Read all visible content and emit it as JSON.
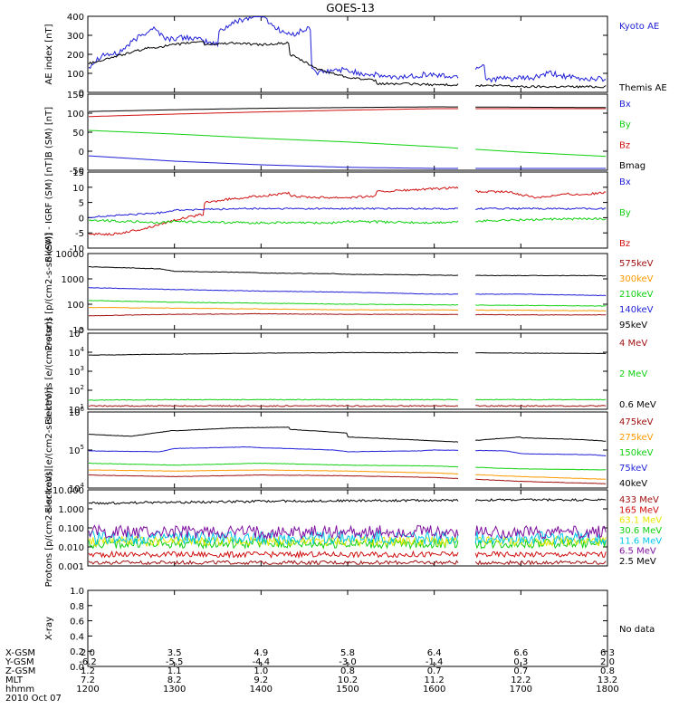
{
  "title": "GOES-13",
  "colors": {
    "black": "#000000",
    "blue": "#1f1fd8",
    "red": "#d01010",
    "green": "#10d010",
    "orange": "#ff9a00",
    "cyan": "#00c8e8",
    "yellow": "#e8e800",
    "darkred": "#a01010",
    "purple": "#8010a0"
  },
  "time_axis": {
    "ticks": [
      "1200",
      "1300",
      "1400",
      "1500",
      "1600",
      "1700",
      "1800"
    ],
    "range": [
      1200,
      1800
    ],
    "gap": [
      1618,
      1628
    ]
  },
  "orbit_table": {
    "rows": [
      {
        "label": "X-GSM",
        "values": [
          "2.0",
          "3.5",
          "4.9",
          "5.8",
          "6.4",
          "6.6",
          "6.3"
        ]
      },
      {
        "label": "Y-GSM",
        "values": [
          "-6.2",
          "-5.5",
          "-4.4",
          "-3.0",
          "-1.4",
          "0.3",
          "2.0"
        ]
      },
      {
        "label": "Z-GSM",
        "values": [
          "1.2",
          "1.1",
          "1.0",
          "0.8",
          "0.7",
          "0.7",
          "0.8"
        ]
      },
      {
        "label": "MLT",
        "values": [
          "7.2",
          "8.2",
          "9.2",
          "10.2",
          "11.2",
          "12.2",
          "13.2"
        ]
      },
      {
        "label": "hhmm",
        "values": [
          "1200",
          "1300",
          "1400",
          "1500",
          "1600",
          "1700",
          "1800"
        ]
      }
    ],
    "date": "2010 Oct 07"
  },
  "chart_data": [
    {
      "type": "line",
      "ylabel": "AE index [nT]",
      "ylim": [
        0,
        400
      ],
      "log": false,
      "yticks": [
        "0",
        "100",
        "200",
        "300",
        "400"
      ],
      "legend": [
        "Kyoto AE",
        "Themis AE"
      ],
      "series": [
        {
          "name": "Kyoto AE",
          "color": "blue",
          "noise": 15,
          "x": [
            1200,
            1210,
            1220,
            1235,
            1245,
            1255,
            1270,
            1290,
            1310,
            1325,
            1335,
            1345,
            1360,
            1370,
            1380,
            1395,
            1410,
            1425,
            1440,
            1455,
            1470,
            1490,
            1510,
            1530,
            1555,
            1575,
            1595,
            1610,
            1640,
            1670,
            1700,
            1720,
            1740,
            1770,
            1790,
            1800
          ],
          "y": [
            130,
            200,
            200,
            290,
            340,
            280,
            290,
            250,
            270,
            300,
            340,
            380,
            410,
            340,
            300,
            340,
            250,
            190,
            100,
            120,
            100,
            80,
            100,
            75,
            95,
            80,
            150,
            80,
            70,
            75,
            60,
            100,
            70,
            75,
            60,
            30
          ]
        },
        {
          "name": "Themis AE",
          "color": "black",
          "noise": 6,
          "x": [
            1200,
            1220,
            1240,
            1260,
            1280,
            1300,
            1320,
            1340,
            1360,
            1380,
            1400,
            1420,
            1440,
            1460,
            1480,
            1500,
            1520,
            1540,
            1560,
            1580,
            1600,
            1620,
            1650,
            1700,
            1750,
            1800
          ],
          "y": [
            150,
            190,
            230,
            250,
            270,
            250,
            250,
            260,
            250,
            260,
            240,
            200,
            120,
            80,
            60,
            50,
            45,
            45,
            40,
            40,
            35,
            35,
            35,
            30,
            30,
            30
          ]
        }
      ]
    },
    {
      "type": "line",
      "ylabel": "B (SM) [nT]",
      "ylim": [
        -60,
        150
      ],
      "log": false,
      "yticks": [
        "-50",
        "0",
        "50",
        "100",
        "150"
      ],
      "legend": [
        "Bx",
        "By",
        "Bz",
        "Bmag"
      ],
      "series": [
        {
          "name": "Bmag",
          "color": "black",
          "noise": 0,
          "x": [
            1200,
            1300,
            1400,
            1500,
            1600,
            1700,
            1800
          ],
          "y": [
            102,
            107,
            111,
            113,
            115,
            114,
            113
          ]
        },
        {
          "name": "Bz",
          "color": "red",
          "noise": 0,
          "x": [
            1200,
            1300,
            1400,
            1500,
            1600,
            1700,
            1800
          ],
          "y": [
            88,
            95,
            101,
            106,
            110,
            110,
            110
          ]
        },
        {
          "name": "By",
          "color": "green",
          "noise": 0,
          "x": [
            1200,
            1300,
            1400,
            1500,
            1600,
            1700,
            1800
          ],
          "y": [
            50,
            40,
            28,
            18,
            5,
            -10,
            -22
          ]
        },
        {
          "name": "Bx",
          "color": "blue",
          "noise": 0,
          "x": [
            1200,
            1300,
            1400,
            1500,
            1600,
            1700,
            1800
          ],
          "y": [
            -20,
            -35,
            -45,
            -52,
            -55,
            -55,
            -55
          ]
        }
      ]
    },
    {
      "type": "line",
      "ylabel": "B (SM) - IGRF (SM) [nT]",
      "ylim": [
        -10,
        17
      ],
      "log": false,
      "yticks": [
        "-10",
        "-5",
        "0",
        "5",
        "10",
        "15"
      ],
      "legend": [
        "Bx",
        "By",
        "Bz"
      ],
      "series": [
        {
          "name": "Bz",
          "color": "red",
          "noise": 0.4,
          "x": [
            1200,
            1220,
            1240,
            1260,
            1280,
            1300,
            1320,
            1340,
            1360,
            1380,
            1400,
            1420,
            1440,
            1460,
            1480,
            1500,
            1520,
            1540,
            1560,
            1580,
            1600,
            1618,
            1628,
            1650,
            1670,
            1690,
            1710,
            1740,
            1770,
            1800
          ],
          "y": [
            -5,
            -5,
            -3,
            0,
            2,
            4,
            6,
            7.5,
            8.5,
            9.5,
            9,
            8.5,
            8,
            8,
            8.5,
            9,
            10,
            10.5,
            11,
            11.5,
            12,
            11.5,
            10,
            10,
            8,
            9,
            10,
            9,
            10,
            11
          ]
        },
        {
          "name": "Bx",
          "color": "blue",
          "noise": 0.3,
          "x": [
            1200,
            1250,
            1300,
            1350,
            1400,
            1450,
            1500,
            1550,
            1600,
            1650,
            1700,
            1750,
            1800
          ],
          "y": [
            1,
            2.5,
            3.5,
            4,
            4,
            4,
            4,
            4,
            4,
            4,
            4,
            4,
            4
          ]
        },
        {
          "name": "By",
          "color": "green",
          "noise": 0.4,
          "x": [
            1200,
            1250,
            1300,
            1350,
            1400,
            1450,
            1500,
            1550,
            1600,
            1650,
            1700,
            1750,
            1800
          ],
          "y": [
            0,
            -1,
            -0.5,
            -1,
            -1,
            -1,
            -0.5,
            -1,
            -1,
            0,
            0,
            0.5,
            0
          ]
        }
      ]
    },
    {
      "type": "line",
      "ylabel": "Protons [p/(cm2-s-sr-keV)]",
      "ylim": [
        10,
        10000
      ],
      "log": true,
      "yticks": [
        "10",
        "100",
        "1000",
        "10000"
      ],
      "legend": [
        "575keV",
        "300keV",
        "210keV",
        "140keV",
        "95keV"
      ],
      "series": [
        {
          "name": "95keV",
          "color": "black",
          "noise": 0.01,
          "x": [
            1200,
            1250,
            1300,
            1350,
            1400,
            1450,
            1500,
            1550,
            1600,
            1650,
            1700,
            1750,
            1800
          ],
          "y": [
            3000,
            2500,
            2000,
            1800,
            1700,
            1600,
            1500,
            1450,
            1400,
            1350,
            1350,
            1350,
            1300
          ]
        },
        {
          "name": "140keV",
          "color": "blue",
          "noise": 0.01,
          "x": [
            1200,
            1300,
            1400,
            1500,
            1600,
            1700,
            1800
          ],
          "y": [
            450,
            380,
            330,
            300,
            250,
            250,
            220
          ]
        },
        {
          "name": "210keV",
          "color": "green",
          "noise": 0.01,
          "x": [
            1200,
            1300,
            1400,
            1500,
            1600,
            1700,
            1800
          ],
          "y": [
            140,
            120,
            110,
            100,
            95,
            90,
            85
          ]
        },
        {
          "name": "300keV",
          "color": "orange",
          "noise": 0.01,
          "x": [
            1200,
            1300,
            1400,
            1500,
            1600,
            1700,
            1800
          ],
          "y": [
            75,
            70,
            65,
            60,
            60,
            58,
            55
          ]
        },
        {
          "name": "575keV",
          "color": "darkred",
          "noise": 0.01,
          "x": [
            1200,
            1300,
            1400,
            1500,
            1600,
            1700,
            1800
          ],
          "y": [
            35,
            40,
            42,
            40,
            40,
            38,
            38
          ]
        }
      ]
    },
    {
      "type": "line",
      "ylabel": "Electrons [e/(cm2-s-sr)]",
      "ylim": [
        10,
        100000
      ],
      "log": true,
      "yticks": [
        "10^1",
        "10^2",
        "10^3",
        "10^4",
        "10^5"
      ],
      "legend": [
        "4 MeV",
        "2 MeV",
        "0.6 MeV"
      ],
      "series": [
        {
          "name": "0.6 MeV",
          "color": "black",
          "noise": 0.01,
          "x": [
            1200,
            1300,
            1400,
            1500,
            1600,
            1700,
            1800
          ],
          "y": [
            7000,
            8000,
            9000,
            9500,
            9500,
            9000,
            8500
          ]
        },
        {
          "name": "2 MeV",
          "color": "green",
          "noise": 0.02,
          "x": [
            1200,
            1300,
            1400,
            1500,
            1600,
            1700,
            1800
          ],
          "y": [
            30,
            32,
            32,
            32,
            32,
            32,
            32
          ]
        },
        {
          "name": "4 MeV",
          "color": "darkred",
          "noise": 0.03,
          "x": [
            1200,
            1300,
            1400,
            1500,
            1600,
            1700,
            1800
          ],
          "y": [
            15,
            15,
            15,
            15,
            15,
            15,
            15
          ]
        }
      ]
    },
    {
      "type": "line",
      "ylabel": "Electrons [e/(cm2-s-sr-keV)]",
      "ylim": [
        10000,
        1000000
      ],
      "log": true,
      "yticks": [
        "10^4",
        "10^5",
        "10^6"
      ],
      "legend": [
        "475keV",
        "275keV",
        "150keV",
        "75keV",
        "40keV"
      ],
      "series": [
        {
          "name": "40keV",
          "color": "black",
          "noise": 0.005,
          "x": [
            1200,
            1230,
            1260,
            1300,
            1340,
            1380,
            1420,
            1460,
            1500,
            1540,
            1580,
            1620,
            1660,
            1700,
            1740,
            1800
          ],
          "y": [
            260000,
            230000,
            330000,
            320000,
            380000,
            400000,
            350000,
            280000,
            220000,
            190000,
            160000,
            170000,
            220000,
            210000,
            190000,
            170000
          ]
        },
        {
          "name": "75keV",
          "color": "blue",
          "noise": 0.005,
          "x": [
            1200,
            1250,
            1300,
            1350,
            1400,
            1450,
            1500,
            1550,
            1600,
            1650,
            1700,
            1750,
            1800
          ],
          "y": [
            95000,
            90000,
            110000,
            120000,
            115000,
            100000,
            90000,
            95000,
            100000,
            95000,
            80000,
            75000,
            70000
          ]
        },
        {
          "name": "150keV",
          "color": "green",
          "noise": 0.005,
          "x": [
            1200,
            1300,
            1400,
            1500,
            1600,
            1700,
            1800
          ],
          "y": [
            45000,
            40000,
            45000,
            40000,
            38000,
            32000,
            30000
          ]
        },
        {
          "name": "275keV",
          "color": "orange",
          "noise": 0.005,
          "x": [
            1200,
            1300,
            1400,
            1500,
            1600,
            1700,
            1800
          ],
          "y": [
            30000,
            28000,
            30000,
            28000,
            25000,
            20000,
            17000
          ]
        },
        {
          "name": "475keV",
          "color": "darkred",
          "noise": 0.005,
          "x": [
            1200,
            1300,
            1400,
            1500,
            1600,
            1700,
            1800
          ],
          "y": [
            22000,
            20000,
            22000,
            21000,
            19000,
            15000,
            13000
          ]
        }
      ]
    },
    {
      "type": "line",
      "ylabel": "Protons [p/(cm2-s-sr-keV)]",
      "ylim": [
        0.001,
        10
      ],
      "log": true,
      "yticks": [
        "0.001",
        "0.010",
        "0.100",
        "1.000",
        "10.000"
      ],
      "legend": [
        "433 MeV",
        "165 MeV",
        "63.1 MeV",
        "30.6 MeV",
        "11.6 MeV",
        "6.5 MeV",
        "2.5 MeV"
      ],
      "series": [
        {
          "name": "2.5 MeV",
          "color": "black",
          "noise": 0.06,
          "x": [
            1200,
            1300,
            1400,
            1500,
            1600,
            1700,
            1800
          ],
          "y": [
            2.0,
            2.2,
            2.5,
            2.7,
            2.8,
            3.0,
            3.0
          ]
        },
        {
          "name": "433 MeV",
          "color": "darkred",
          "noise": 0.1,
          "x": [
            1200,
            1800
          ],
          "y": [
            0.0015,
            0.0015
          ]
        },
        {
          "name": "165 MeV",
          "color": "red",
          "noise": 0.15,
          "x": [
            1200,
            1800
          ],
          "y": [
            0.004,
            0.004
          ]
        },
        {
          "name": "30.6 MeV",
          "color": "green",
          "noise": 0.25,
          "x": [
            1200,
            1800
          ],
          "y": [
            0.015,
            0.015
          ]
        },
        {
          "name": "63.1 MeV",
          "color": "yellow",
          "noise": 0.25,
          "x": [
            1200,
            1800
          ],
          "y": [
            0.02,
            0.02
          ]
        },
        {
          "name": "11.6 MeV",
          "color": "cyan",
          "noise": 0.35,
          "x": [
            1200,
            1800
          ],
          "y": [
            0.03,
            0.03
          ]
        },
        {
          "name": "6.5 MeV",
          "color": "purple",
          "noise": 0.35,
          "x": [
            1200,
            1800
          ],
          "y": [
            0.06,
            0.06
          ]
        }
      ]
    },
    {
      "type": "line",
      "ylabel": "X-ray",
      "ylim": [
        0,
        1
      ],
      "log": false,
      "yticks": [
        "0.0",
        "0.2",
        "0.4",
        "0.6",
        "0.8",
        "1.0"
      ],
      "legend": [
        "No data"
      ],
      "series": []
    }
  ]
}
